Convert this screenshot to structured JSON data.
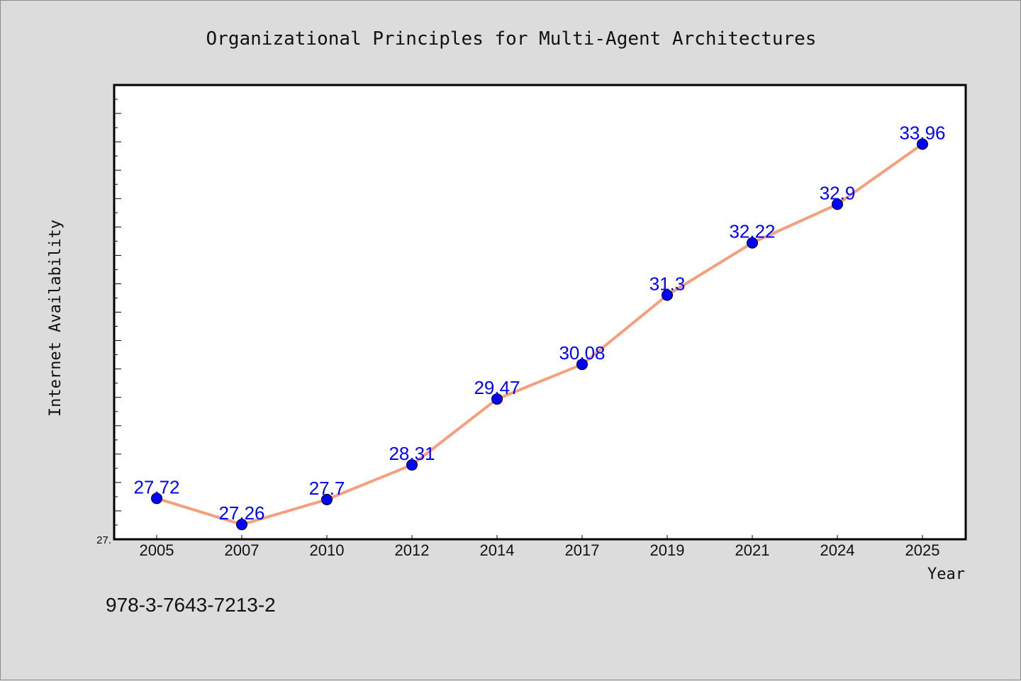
{
  "chart_data": {
    "type": "line",
    "title": "Organizational Principles for Multi-Agent Architectures",
    "xlabel": "Year",
    "ylabel": "Internet Availability",
    "categories": [
      "2005",
      "2007",
      "2010",
      "2012",
      "2014",
      "2017",
      "2019",
      "2021",
      "2024",
      "2025"
    ],
    "series": [
      {
        "values": [
          27.72,
          27.26,
          27.7,
          28.31,
          29.47,
          30.08,
          31.3,
          32.22,
          32.9,
          33.96
        ],
        "labels": [
          "27.72",
          "27.26",
          "27.7",
          "28.31",
          "29.47",
          "30.08",
          "31.3",
          "32.22",
          "32.9",
          "33.96"
        ],
        "line_color": "#f4a07e",
        "marker_color": "#0000ff"
      }
    ],
    "ylim": [
      27.0,
      35.0
    ],
    "y_tick_labels": [
      "27."
    ],
    "grid": false,
    "legend": "none"
  },
  "footer": {
    "text": "978-3-7643-7213-2"
  }
}
